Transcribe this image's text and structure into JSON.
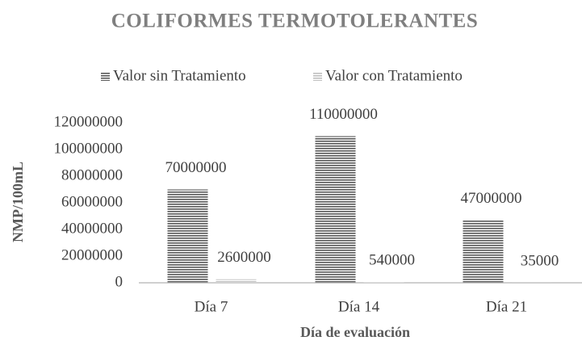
{
  "chart_data": {
    "type": "bar",
    "title": "COLIFORMES TERMOTOLERANTES",
    "x_label": "Día de evaluación",
    "y_label": "NMP/100mL",
    "categories": [
      "Día 7",
      "Día 14",
      "Día 21"
    ],
    "series": [
      {
        "name": "Valor sin Tratamiento",
        "color": "#595959",
        "values": [
          70000000,
          110000000,
          47000000
        ]
      },
      {
        "name": "Valor con Tratamiento",
        "color": "#bfbfbf",
        "values": [
          2600000,
          540000,
          35000
        ]
      }
    ],
    "ylim": [
      0,
      120000000
    ],
    "yticks": [
      0,
      20000000,
      40000000,
      60000000,
      80000000,
      100000000,
      120000000
    ],
    "grid": false,
    "legend": "top"
  }
}
